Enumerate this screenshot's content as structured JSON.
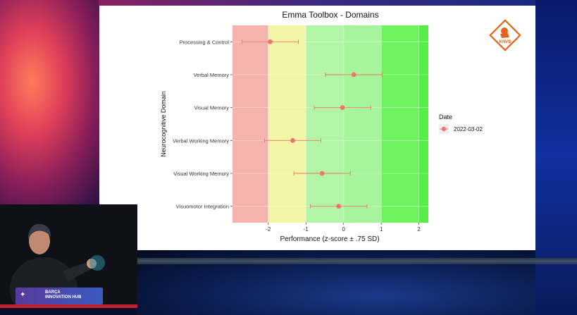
{
  "chart_data": {
    "type": "scatter",
    "title": "Emma Toolbox - Domains",
    "xlabel": "Performance (z-score ± .75 SD)",
    "ylabel": "Neurocognitive Domain",
    "xlim": [
      -2.95,
      2.25
    ],
    "x_ticks": [
      -2,
      -1,
      0,
      1,
      2
    ],
    "x_tick_labels": [
      "-2",
      "-1",
      "0",
      "1",
      "2"
    ],
    "categories": [
      "Processing & Control",
      "Verbal Memory",
      "Visual Memory",
      "Verbal Working Memory",
      "Visual Working Memory",
      "Visuomotor Integration"
    ],
    "bands": [
      {
        "from": -2.95,
        "to": -2,
        "color": "#f4b3ad"
      },
      {
        "from": -2,
        "to": -1,
        "color": "#f3f5a6"
      },
      {
        "from": -1,
        "to": 0,
        "color": "#b2f5a6"
      },
      {
        "from": 0,
        "to": 1,
        "color": "#a6f59c"
      },
      {
        "from": 1,
        "to": 2,
        "color": "#6ef35e"
      },
      {
        "from": 2,
        "to": 2.25,
        "color": "#53ef46"
      }
    ],
    "series": [
      {
        "name": "2022-03-02",
        "color": "#f0756b",
        "values": [
          {
            "y": "Processing & Control",
            "x": -1.95,
            "low": -2.7,
            "high": -1.2
          },
          {
            "y": "Verbal Memory",
            "x": 0.27,
            "low": -0.48,
            "high": 1.02
          },
          {
            "y": "Visual Memory",
            "x": -0.03,
            "low": -0.78,
            "high": 0.72
          },
          {
            "y": "Verbal Working Memory",
            "x": -1.35,
            "low": -2.1,
            "high": -0.6
          },
          {
            "y": "Visual Working Memory",
            "x": -0.57,
            "low": -1.32,
            "high": 0.18
          },
          {
            "y": "Visuomotor Integration",
            "x": -0.13,
            "low": -0.88,
            "high": 0.62
          }
        ]
      }
    ],
    "legend": {
      "title": "Date",
      "position": "right"
    },
    "grid": true
  },
  "logo": {
    "text": "KNVB",
    "color": "#e0631e"
  },
  "stage": {
    "line1": "BARÇA",
    "line2": "INNOVATION HUB"
  }
}
